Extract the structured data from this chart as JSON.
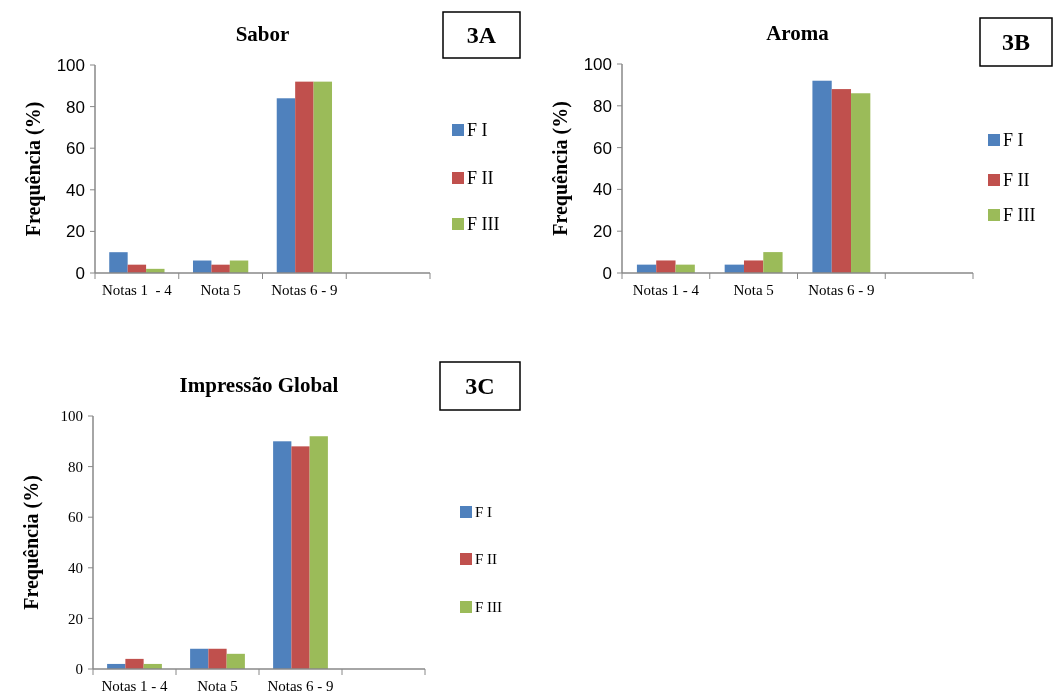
{
  "chart_data": [
    {
      "type": "bar",
      "title": "Sabor",
      "ylabel": "Frequência (%)",
      "annotations": [
        "3A"
      ],
      "categories": [
        "Notas 1  - 4",
        "Nota 5",
        "Notas 6 - 9",
        null
      ],
      "ylim": [
        0,
        100
      ],
      "yticks": [
        0,
        20,
        40,
        60,
        80,
        100
      ],
      "legend": "right",
      "grid": false,
      "series": [
        {
          "name": "F I",
          "color": "#4f81bd",
          "values": [
            10,
            6,
            84,
            null
          ]
        },
        {
          "name": "F II",
          "color": "#c0504d",
          "values": [
            4,
            4,
            92,
            null
          ]
        },
        {
          "name": "F III",
          "color": "#9bbb59",
          "values": [
            2,
            6,
            92,
            null
          ]
        }
      ]
    },
    {
      "type": "bar",
      "title": "Aroma",
      "ylabel": "Frequência (%)",
      "annotations": [
        "3B"
      ],
      "categories": [
        "Notas 1 - 4",
        "Nota 5",
        "Notas 6 - 9",
        null
      ],
      "ylim": [
        0,
        100
      ],
      "yticks": [
        0,
        20,
        40,
        60,
        80,
        100
      ],
      "legend": "right",
      "grid": false,
      "series": [
        {
          "name": "F I",
          "color": "#4f81bd",
          "values": [
            4,
            4,
            92,
            null
          ]
        },
        {
          "name": "F II",
          "color": "#c0504d",
          "values": [
            6,
            6,
            88,
            null
          ]
        },
        {
          "name": "F III",
          "color": "#9bbb59",
          "values": [
            4,
            10,
            86,
            null
          ]
        }
      ]
    },
    {
      "type": "bar",
      "title": "Impressão Global",
      "ylabel": "Frequência (%)",
      "annotations": [
        "3C"
      ],
      "categories": [
        "Notas 1 - 4",
        "Nota 5",
        "Notas 6 - 9",
        null
      ],
      "ylim": [
        0,
        100
      ],
      "yticks": [
        0,
        20,
        40,
        60,
        80,
        100
      ],
      "legend": "right",
      "grid": false,
      "series": [
        {
          "name": "F I",
          "color": "#4f81bd",
          "values": [
            2,
            8,
            90,
            null
          ]
        },
        {
          "name": "F II",
          "color": "#c0504d",
          "values": [
            4,
            8,
            88,
            null
          ]
        },
        {
          "name": "F III",
          "color": "#9bbb59",
          "values": [
            2,
            6,
            92,
            null
          ]
        }
      ]
    }
  ]
}
